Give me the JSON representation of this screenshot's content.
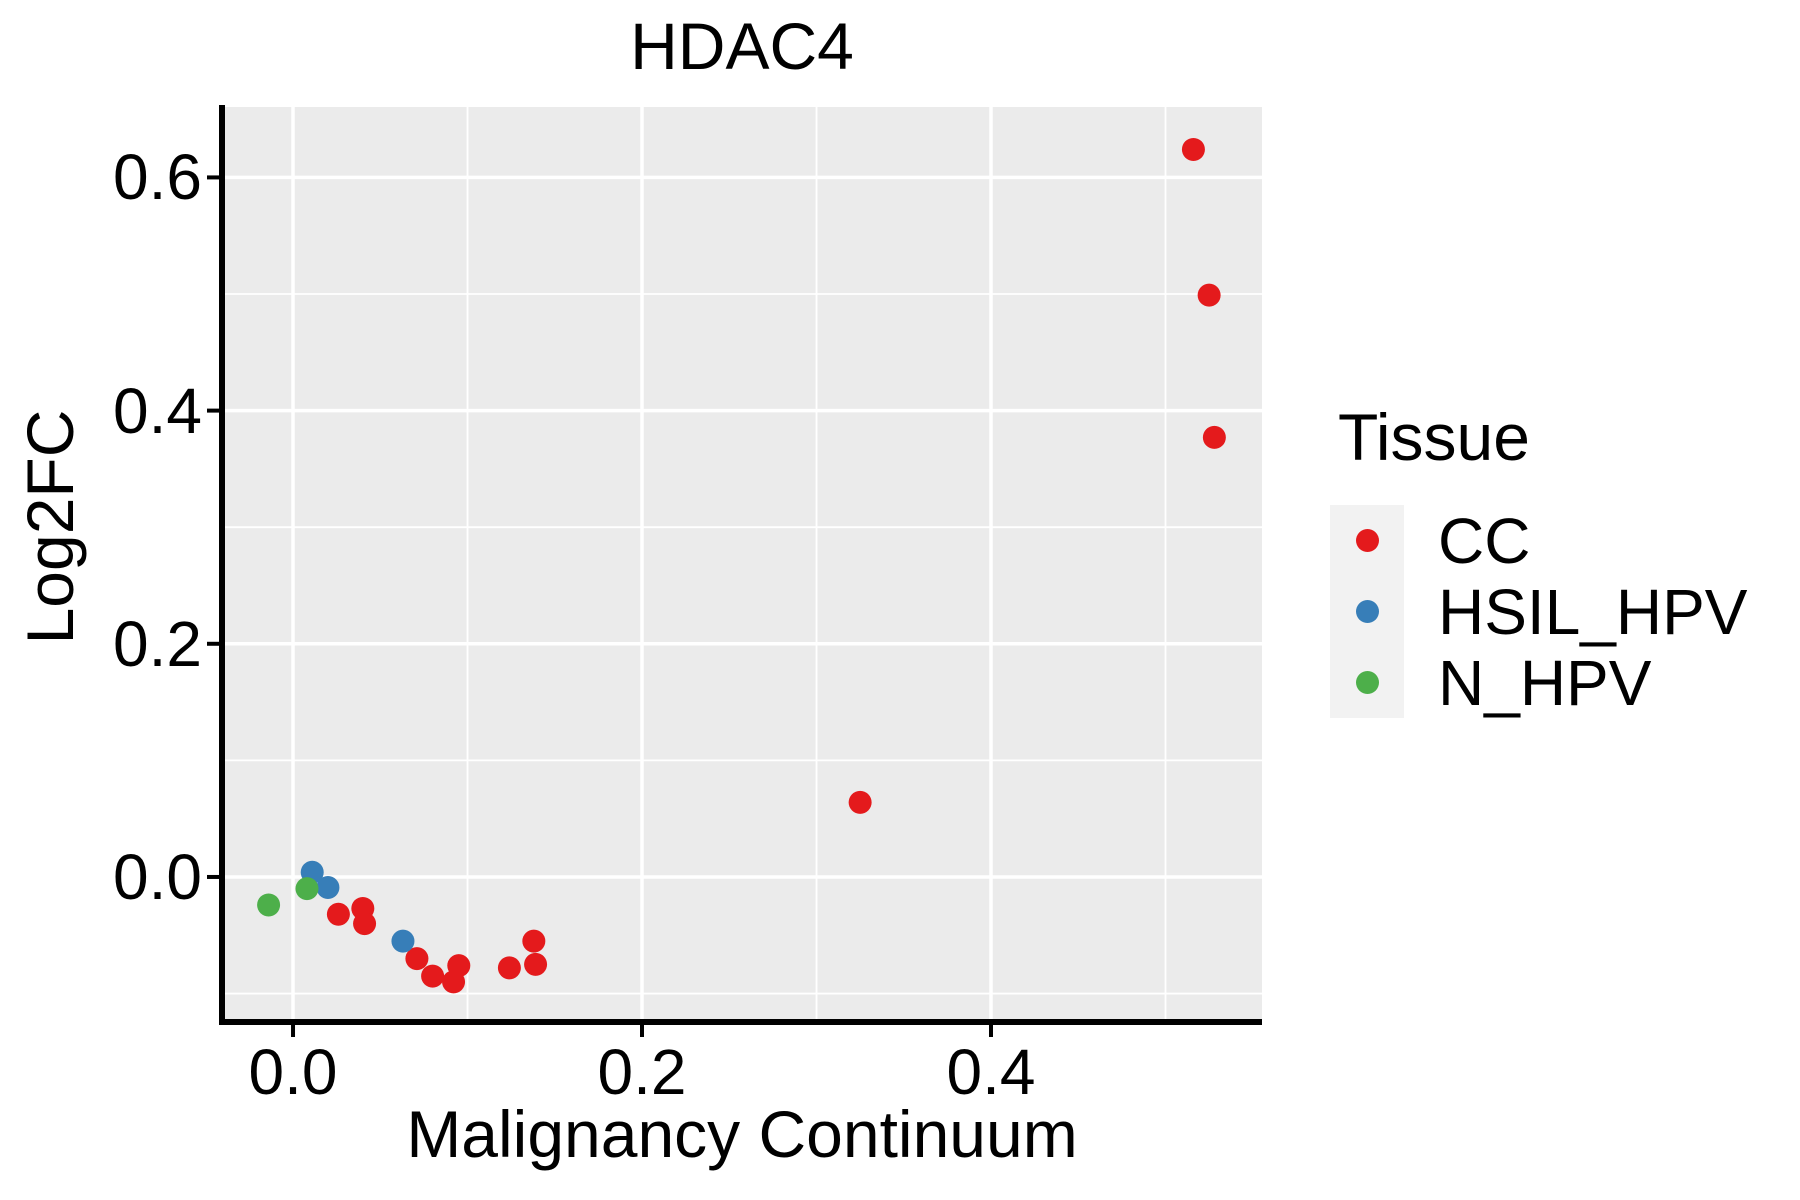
{
  "chart_data": {
    "type": "scatter",
    "title": "HDAC4",
    "xlabel": "Malignancy Continuum",
    "ylabel": "Log2FC",
    "legend_title": "Tissue",
    "legend_position": "right",
    "grid": true,
    "panel_fill": "#EBEBEB",
    "gridline_color": "#FFFFFF",
    "legend_key_fill": "#F2F2F2",
    "axis_color": "#000000",
    "text_color": "#000000",
    "xlim": [
      -0.0407,
      0.5553
    ],
    "ylim": [
      -0.1244,
      0.6604
    ],
    "x_ticks": [
      0.0,
      0.2,
      0.4
    ],
    "y_ticks": [
      0.0,
      0.2,
      0.4,
      0.6
    ],
    "series": [
      {
        "name": "CC",
        "color": "#E41A1C",
        "points": [
          [
            0.026,
            -0.032
          ],
          [
            0.04,
            -0.027
          ],
          [
            0.041,
            -0.04
          ],
          [
            0.071,
            -0.07
          ],
          [
            0.08,
            -0.085
          ],
          [
            0.092,
            -0.09
          ],
          [
            0.095,
            -0.076
          ],
          [
            0.124,
            -0.078
          ],
          [
            0.138,
            -0.055
          ],
          [
            0.139,
            -0.075
          ],
          [
            0.325,
            0.064
          ],
          [
            0.516,
            0.624
          ],
          [
            0.525,
            0.499
          ],
          [
            0.528,
            0.377
          ]
        ]
      },
      {
        "name": "HSIL_HPV",
        "color": "#377EB8",
        "points": [
          [
            0.011,
            0.004
          ],
          [
            0.02,
            -0.009
          ],
          [
            0.063,
            -0.055
          ]
        ]
      },
      {
        "name": "N_HPV",
        "color": "#4DAF4A",
        "points": [
          [
            -0.014,
            -0.024
          ],
          [
            0.008,
            -0.01
          ]
        ]
      }
    ]
  }
}
